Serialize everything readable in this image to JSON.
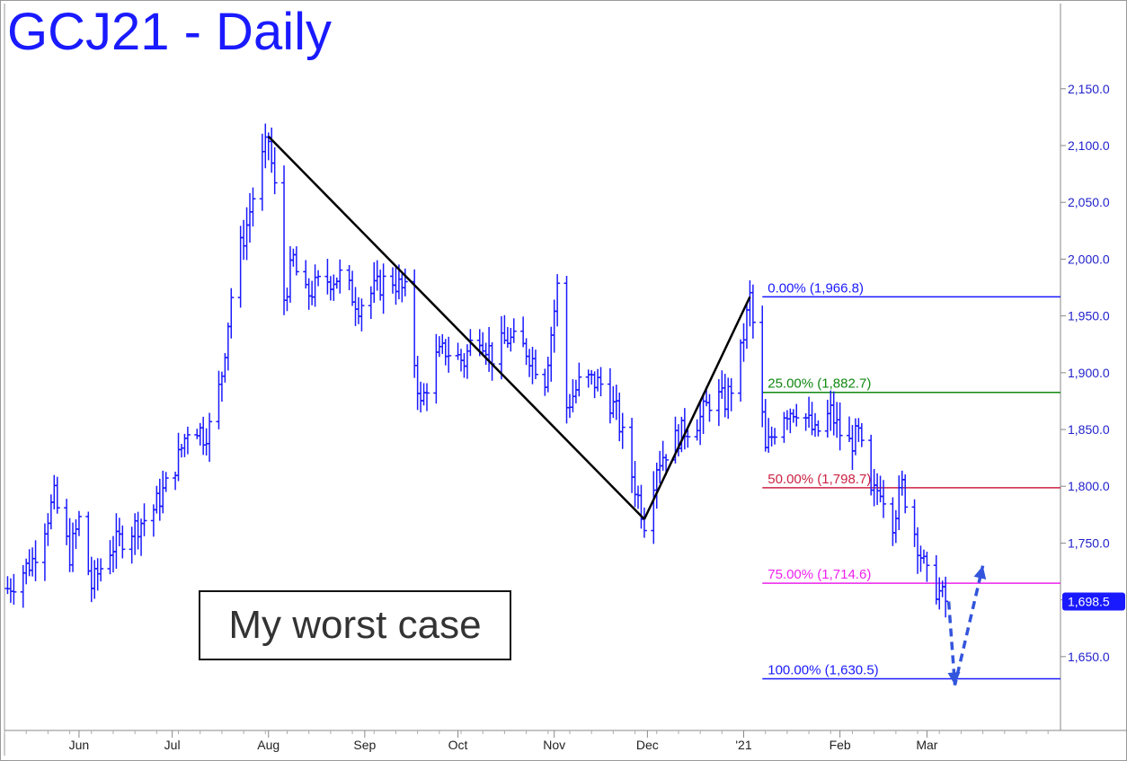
{
  "title": "GCJ21 - Daily",
  "annotation": "My worst case",
  "colors": {
    "price_bars": "#1a1aff",
    "axis_text": "#2222cc",
    "trend_lines": "#000000",
    "projection_arrow": "#3355dd",
    "last_price_bg": "#1a1aff"
  },
  "chart_data": {
    "type": "ohlc",
    "title": "GCJ21 - Daily",
    "ylim": [
      1585,
      2225
    ],
    "y_ticks": [
      {
        "value": 2150,
        "label": "2,150.0"
      },
      {
        "value": 2100,
        "label": "2,100.0"
      },
      {
        "value": 2050,
        "label": "2,050.0"
      },
      {
        "value": 2000,
        "label": "2,000.0"
      },
      {
        "value": 1950,
        "label": "1,950.0"
      },
      {
        "value": 1900,
        "label": "1,900.0"
      },
      {
        "value": 1850,
        "label": "1,850.0"
      },
      {
        "value": 1800,
        "label": "1,800.0"
      },
      {
        "value": 1750,
        "label": "1,750.0"
      },
      {
        "value": 1700,
        "label": "1,700.0"
      },
      {
        "value": 1650,
        "label": "1,650.0"
      }
    ],
    "x_labels": [
      {
        "day": 60,
        "label": "Jun"
      },
      {
        "day": 90,
        "label": "Jul"
      },
      {
        "day": 121,
        "label": "Aug"
      },
      {
        "day": 152,
        "label": "Sep"
      },
      {
        "day": 182,
        "label": "Oct"
      },
      {
        "day": 213,
        "label": "Nov"
      },
      {
        "day": 243,
        "label": "Dec"
      },
      {
        "day": 274,
        "label": "'21"
      },
      {
        "day": 305,
        "label": "Feb"
      },
      {
        "day": 333,
        "label": "Mar"
      }
    ],
    "x_range": [
      36,
      376
    ],
    "last_price": {
      "value": 1698.5,
      "label": "1,698.5"
    },
    "anchors": [
      [
        37,
        1710
      ],
      [
        45,
        1735
      ],
      [
        52,
        1790
      ],
      [
        57,
        1740
      ],
      [
        60,
        1770
      ],
      [
        64,
        1712
      ],
      [
        70,
        1745
      ],
      [
        76,
        1760
      ],
      [
        83,
        1775
      ],
      [
        88,
        1800
      ],
      [
        92,
        1825
      ],
      [
        96,
        1860
      ],
      [
        100,
        1845
      ],
      [
        103,
        1855
      ],
      [
        106,
        1900
      ],
      [
        110,
        1990
      ],
      [
        114,
        2030
      ],
      [
        118,
        2080
      ],
      [
        121,
        2105
      ],
      [
        124,
        2040
      ],
      [
        126,
        1965
      ],
      [
        129,
        2000
      ],
      [
        132,
        1965
      ],
      [
        138,
        1980
      ],
      [
        144,
        1985
      ],
      [
        150,
        1960
      ],
      [
        156,
        1975
      ],
      [
        160,
        1985
      ],
      [
        165,
        1970
      ],
      [
        170,
        1870
      ],
      [
        174,
        1910
      ],
      [
        178,
        1920
      ],
      [
        184,
        1910
      ],
      [
        188,
        1940
      ],
      [
        193,
        1915
      ],
      [
        198,
        1930
      ],
      [
        204,
        1920
      ],
      [
        210,
        1895
      ],
      [
        214,
        1975
      ],
      [
        217,
        1870
      ],
      [
        222,
        1895
      ],
      [
        228,
        1890
      ],
      [
        233,
        1865
      ],
      [
        238,
        1810
      ],
      [
        242,
        1770
      ],
      [
        246,
        1820
      ],
      [
        250,
        1835
      ],
      [
        255,
        1850
      ],
      [
        260,
        1860
      ],
      [
        264,
        1880
      ],
      [
        268,
        1875
      ],
      [
        272,
        1900
      ],
      [
        276,
        1966
      ],
      [
        278,
        1920
      ],
      [
        281,
        1830
      ],
      [
        286,
        1865
      ],
      [
        292,
        1870
      ],
      [
        297,
        1845
      ],
      [
        302,
        1865
      ],
      [
        307,
        1835
      ],
      [
        311,
        1845
      ],
      [
        315,
        1790
      ],
      [
        318,
        1800
      ],
      [
        322,
        1770
      ],
      [
        325,
        1800
      ],
      [
        329,
        1760
      ],
      [
        333,
        1720
      ],
      [
        336,
        1710
      ],
      [
        339,
        1698.5
      ]
    ],
    "trend_lines": [
      {
        "from": {
          "day": 121,
          "value": 2108
        },
        "to": {
          "day": 242,
          "value": 1771
        }
      },
      {
        "from": {
          "day": 242,
          "value": 1771
        },
        "to": {
          "day": 276,
          "value": 1966.8
        }
      }
    ],
    "retracement_levels": [
      {
        "pct": "0.00%",
        "value": 1966.8,
        "label": "0.00% (1,966.8)",
        "color": "#1a1aff"
      },
      {
        "pct": "25.00%",
        "value": 1882.7,
        "label": "25.00% (1,882.7)",
        "color": "#118811"
      },
      {
        "pct": "50.00%",
        "value": 1798.7,
        "label": "50.00% (1,798.7)",
        "color": "#cc2244"
      },
      {
        "pct": "75.00%",
        "value": 1714.6,
        "label": "75.00% (1,714.6)",
        "color": "#ee22ee"
      },
      {
        "pct": "100.00%",
        "value": 1630.5,
        "label": "100.00% (1,630.5)",
        "color": "#1a1aff"
      }
    ],
    "retracement_start_day": 280,
    "projection_arrow": [
      {
        "day": 340,
        "value": 1698.5
      },
      {
        "day": 342,
        "value": 1625
      },
      {
        "day": 351,
        "value": 1730
      }
    ],
    "grid": false,
    "legend": "none"
  }
}
